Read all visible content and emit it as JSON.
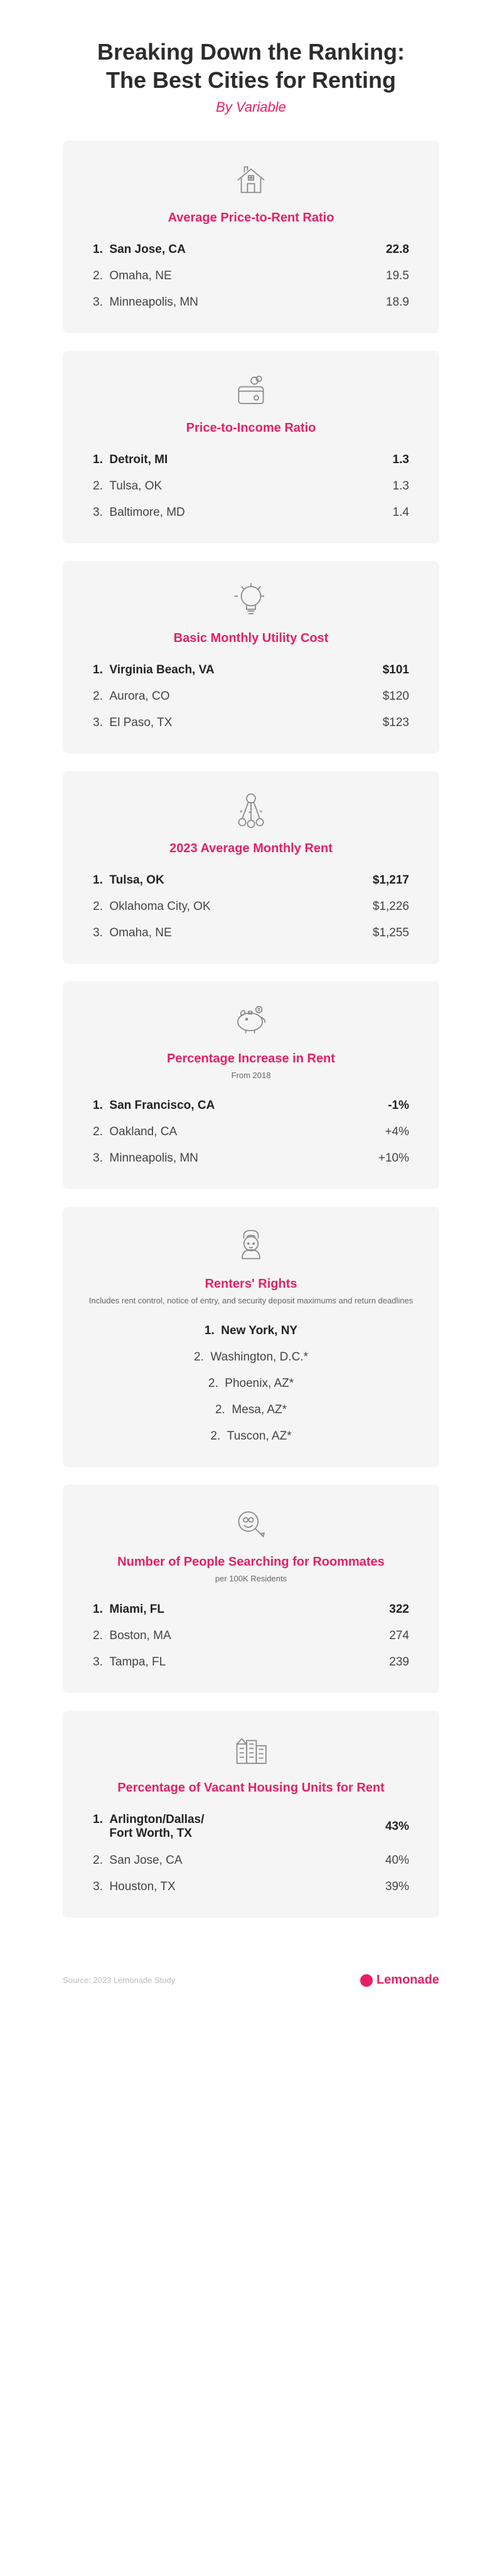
{
  "header": {
    "title": "Breaking Down the Ranking:\nThe Best Cities for Renting",
    "subtitle": "By Variable"
  },
  "accent_color": "#e91e63",
  "bg_color": "#f5f5f5",
  "sections": [
    {
      "icon": "house",
      "title": "Average Price-to-Rent Ratio",
      "sub": "",
      "centered": false,
      "rows": [
        {
          "rank": "1.",
          "city": "San Jose, CA",
          "value": "22.8"
        },
        {
          "rank": "2.",
          "city": "Omaha, NE",
          "value": "19.5"
        },
        {
          "rank": "3.",
          "city": "Minneapolis, MN",
          "value": "18.9"
        }
      ]
    },
    {
      "icon": "wallet",
      "title": "Price-to-Income Ratio",
      "sub": "",
      "centered": false,
      "rows": [
        {
          "rank": "1.",
          "city": "Detroit, MI",
          "value": "1.3"
        },
        {
          "rank": "2.",
          "city": "Tulsa, OK",
          "value": "1.3"
        },
        {
          "rank": "3.",
          "city": "Baltimore, MD",
          "value": "1.4"
        }
      ]
    },
    {
      "icon": "bulb",
      "title": "Basic Monthly Utility Cost",
      "sub": "",
      "centered": false,
      "rows": [
        {
          "rank": "1.",
          "city": "Virginia Beach, VA",
          "value": "$101"
        },
        {
          "rank": "2.",
          "city": "Aurora, CO",
          "value": "$120"
        },
        {
          "rank": "3.",
          "city": "El Paso, TX",
          "value": "$123"
        }
      ]
    },
    {
      "icon": "keys",
      "title": "2023 Average Monthly Rent",
      "sub": "",
      "centered": false,
      "rows": [
        {
          "rank": "1.",
          "city": "Tulsa, OK",
          "value": "$1,217"
        },
        {
          "rank": "2.",
          "city": "Oklahoma City, OK",
          "value": "$1,226"
        },
        {
          "rank": "3.",
          "city": "Omaha, NE",
          "value": "$1,255"
        }
      ]
    },
    {
      "icon": "piggy",
      "title": "Percentage Increase in Rent",
      "sub": "From 2018",
      "centered": false,
      "rows": [
        {
          "rank": "1.",
          "city": "San Francisco, CA",
          "value": "-1%"
        },
        {
          "rank": "2.",
          "city": "Oakland, CA",
          "value": "+4%"
        },
        {
          "rank": "3.",
          "city": "Minneapolis, MN",
          "value": "+10%"
        }
      ]
    },
    {
      "icon": "person",
      "title": "Renters' Rights",
      "sub": "Includes rent control, notice of entry, and security deposit maximums and return deadlines",
      "centered": true,
      "rows": [
        {
          "rank": "1.",
          "city": "New York, NY",
          "value": ""
        },
        {
          "rank": "2.",
          "city": "Washington, D.C.*",
          "value": ""
        },
        {
          "rank": "2.",
          "city": "Phoenix, AZ*",
          "value": ""
        },
        {
          "rank": "2.",
          "city": "Mesa, AZ*",
          "value": ""
        },
        {
          "rank": "2.",
          "city": "Tuscon, AZ*",
          "value": ""
        }
      ]
    },
    {
      "icon": "magnify",
      "title": "Number of People Searching for Roommates",
      "sub": "per 100K Residents",
      "centered": false,
      "rows": [
        {
          "rank": "1.",
          "city": "Miami, FL",
          "value": "322"
        },
        {
          "rank": "2.",
          "city": "Boston, MA",
          "value": "274"
        },
        {
          "rank": "3.",
          "city": "Tampa, FL",
          "value": "239"
        }
      ]
    },
    {
      "icon": "buildings",
      "title": "Percentage of Vacant Housing Units for Rent",
      "sub": "",
      "centered": false,
      "rows": [
        {
          "rank": "1.",
          "city": "Arlington/Dallas/\nFort Worth, TX",
          "value": "43%"
        },
        {
          "rank": "2.",
          "city": "San Jose, CA",
          "value": "40%"
        },
        {
          "rank": "3.",
          "city": "Houston, TX",
          "value": "39%"
        }
      ]
    }
  ],
  "footer": {
    "source": "Source: 2023 Lemonade Study",
    "brand": "Lemonade"
  }
}
